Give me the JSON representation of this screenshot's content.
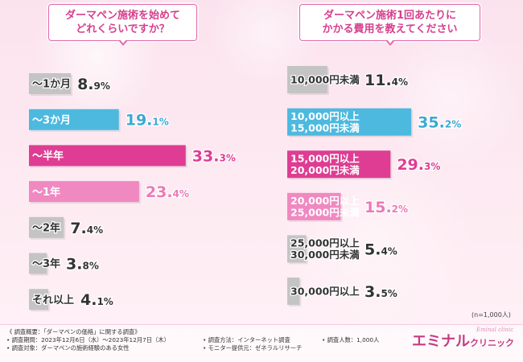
{
  "left_question": [
    "ダーマペン施術を始めて",
    "どれくらいですか？"
  ],
  "right_question": [
    "ダーマペン施術1回あたりに",
    "かかる費用を教えてください"
  ],
  "chart_data": [
    {
      "type": "bar",
      "title": "ダーマペン施術を始めてどれくらいですか？",
      "categories": [
        "〜1か月",
        "〜3か月",
        "〜半年",
        "〜1年",
        "〜2年",
        "〜3年",
        "それ以上"
      ],
      "values": [
        8.9,
        19.1,
        33.3,
        23.4,
        7.4,
        3.8,
        4.1
      ],
      "value_labels": [
        [
          "8.",
          "9%"
        ],
        [
          "19.",
          "1%"
        ],
        [
          "33.",
          "3%"
        ],
        [
          "23.",
          "4%"
        ],
        [
          "7.",
          "4%"
        ],
        [
          "3.",
          "8%"
        ],
        [
          "4.",
          "1%"
        ]
      ],
      "colors": [
        "#c4c4c4",
        "#4db9df",
        "#de3d93",
        "#f089c1",
        "#c4c4c4",
        "#c4c4c4",
        "#c4c4c4"
      ],
      "label_colors": [
        "#333333",
        "#ffffff",
        "#ffffff",
        "#ffffff",
        "#333333",
        "#333333",
        "#333333"
      ],
      "value_colors": [
        "#333333",
        "#3aa9d3",
        "#de3d93",
        "#ec79b5",
        "#333333",
        "#333333",
        "#333333"
      ]
    },
    {
      "type": "bar",
      "title": "ダーマペン施術1回あたりにかかる費用を教えてください",
      "categories": [
        [
          "10,000円未満"
        ],
        [
          "10,000円以上",
          "15,000円未満"
        ],
        [
          "15,000円以上",
          "20,000円未満"
        ],
        [
          "20,000円以上",
          "25,000円未満"
        ],
        [
          "25,000円以上",
          "30,000円未満"
        ],
        [
          "30,000円以上"
        ]
      ],
      "values": [
        11.4,
        35.2,
        29.3,
        15.2,
        5.4,
        3.5
      ],
      "value_labels": [
        [
          "11.",
          "4%"
        ],
        [
          "35.",
          "2%"
        ],
        [
          "29.",
          "3%"
        ],
        [
          "15.",
          "2%"
        ],
        [
          "5.",
          "4%"
        ],
        [
          "3.",
          "5%"
        ]
      ],
      "colors": [
        "#c4c4c4",
        "#4db9df",
        "#de3d93",
        "#f089c1",
        "#c4c4c4",
        "#c4c4c4"
      ],
      "label_colors": [
        "#333333",
        "#ffffff",
        "#ffffff",
        "#ffffff",
        "#333333",
        "#333333"
      ],
      "value_colors": [
        "#333333",
        "#3aa9d3",
        "#de3d93",
        "#ec79b5",
        "#333333",
        "#333333"
      ]
    }
  ],
  "n_note": "(n=1,000人)",
  "footer": {
    "overview": "《 調査概要：「ダーマペンの価格」に関する調査》",
    "period": "• 調査期間：2023年12月6日（水）〜2023年12月7日（木）",
    "target": "• 調査対象：ダーマペンの施術経験のある女性",
    "method": "• 調査方法：インターネット調査",
    "monitor": "• モニター提供元：ゼネラルリサーチ",
    "count": "• 調査人数：1,000人"
  },
  "logo": {
    "main": "エミナル",
    "sub": "クリニック",
    "script": "Eminal clinic"
  }
}
